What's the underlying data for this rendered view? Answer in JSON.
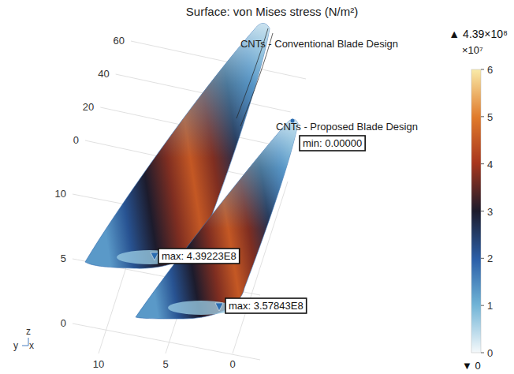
{
  "chart_data": {
    "type": "surface",
    "title": "Surface: von Mises stress (N/m²)",
    "zlim": [
      0,
      60
    ],
    "zticks": [
      0,
      20,
      40,
      60
    ],
    "ylim": [
      0,
      10
    ],
    "yticks": [
      0,
      5,
      10
    ],
    "xlim": [
      0,
      10
    ],
    "xticks": [
      0,
      5,
      10
    ],
    "axis_triad": [
      "z",
      "y",
      "x"
    ],
    "series": [
      {
        "name": "CNTs - Conventional Blade Design",
        "max": {
          "value": 439223000,
          "label": "max: 4.39223E8"
        }
      },
      {
        "name": "CNTs - Proposed Blade Design",
        "min": {
          "value": 0,
          "label": "min: 0.00000"
        },
        "max": {
          "value": 357843000,
          "label": "max: 3.57843E8"
        }
      }
    ],
    "colorbar": {
      "range": [
        0,
        60000000
      ],
      "ticks": [
        0,
        {
          "value": 10000000,
          "label": "1"
        },
        {
          "value": 20000000,
          "label": "2"
        },
        {
          "value": 30000000,
          "label": "3"
        },
        {
          "value": 40000000,
          "label": "4"
        },
        {
          "value": 50000000,
          "label": "5"
        },
        {
          "value": 60000000,
          "label": "6"
        }
      ],
      "multiplier": "×10⁷",
      "max": {
        "value": 439000000,
        "label": "▲ 4.39×10⁸"
      },
      "min": {
        "value": 0,
        "label": "▼ 0"
      }
    }
  }
}
